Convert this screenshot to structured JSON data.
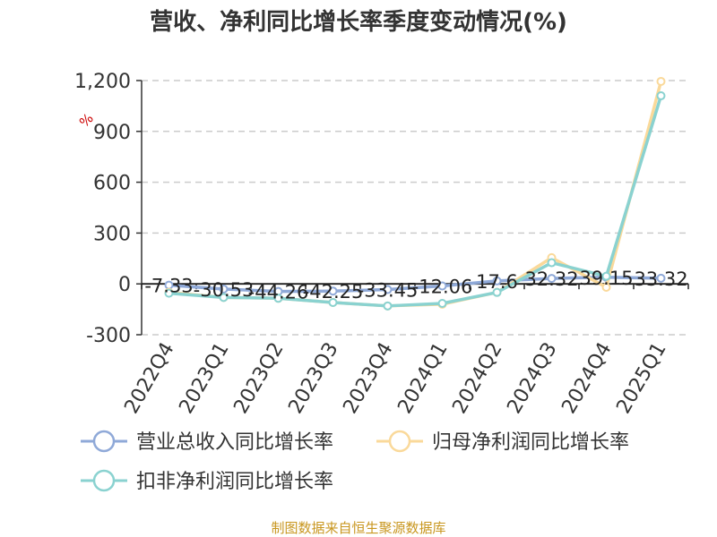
{
  "chart_data": {
    "type": "line",
    "title": "营收、净利同比增长率季度变动情况(%)",
    "ylabel": "%",
    "categories": [
      "2022Q4",
      "2023Q1",
      "2023Q2",
      "2023Q3",
      "2023Q4",
      "2024Q1",
      "2024Q2",
      "2024Q3",
      "2024Q4",
      "2025Q1"
    ],
    "ylim": [
      -300,
      1200
    ],
    "yticks": [
      -300,
      0,
      300,
      600,
      900,
      1200
    ],
    "ytick_labels": [
      "-300",
      "0",
      "300",
      "600",
      "900",
      "1,200"
    ],
    "grid": true,
    "legend_position": "bottom",
    "series": [
      {
        "name": "营业总收入同比增长率",
        "color": "#8fa9d8",
        "values": [
          -7.33,
          -30.53,
          -44.26,
          -42.25,
          -33.45,
          -12.06,
          17.6,
          32.32,
          39.15,
          33.32
        ],
        "data_labels": [
          "-7.33",
          "-30.53",
          "-44.26",
          "-42.25",
          "-33.45",
          "-12.06",
          "17.6",
          "32.32",
          "39.15",
          "33.32"
        ]
      },
      {
        "name": "归母净利润同比增长率",
        "color": "#fad99a",
        "values": [
          -50,
          -80,
          -85,
          -110,
          -130,
          -120,
          -50,
          155,
          -20,
          1195
        ]
      },
      {
        "name": "扣非净利润同比增长率",
        "color": "#8ad2d0",
        "values": [
          -55,
          -80,
          -85,
          -110,
          -130,
          -115,
          -50,
          125,
          45,
          1110
        ]
      }
    ]
  },
  "source_text": "制图数据来自恒生聚源数据库"
}
